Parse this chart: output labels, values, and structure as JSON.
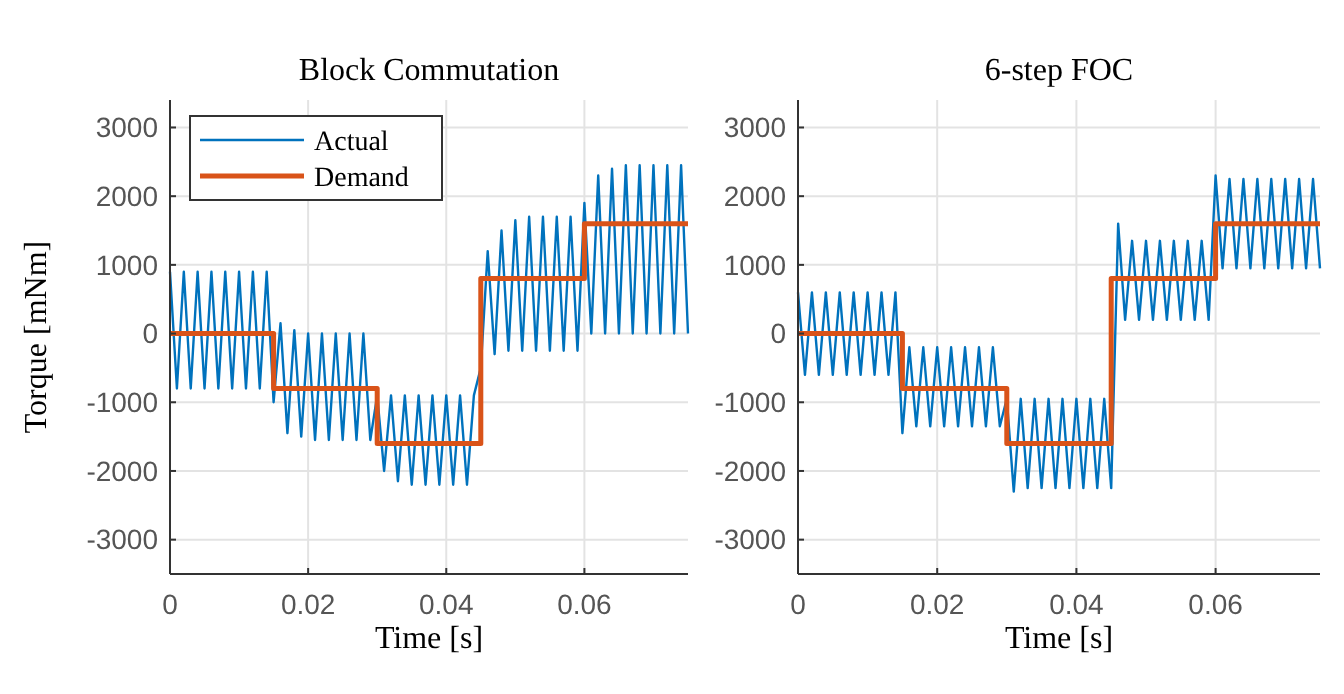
{
  "chart_data": [
    {
      "type": "line",
      "title": "Block Commutation",
      "xlabel": "Time [s]",
      "ylabel": "Torque [mNm]",
      "xlim": [
        0,
        0.075
      ],
      "ylim": [
        -3500,
        3400
      ],
      "xticks": [
        0,
        0.02,
        0.04,
        0.06
      ],
      "yticks": [
        -3000,
        -2000,
        -1000,
        0,
        1000,
        2000,
        3000
      ],
      "grid": true,
      "legend": "top left",
      "series": [
        {
          "name": "Actual",
          "color": "#0072bd",
          "x": [
            0,
            0.001,
            0.002,
            0.003,
            0.004,
            0.005,
            0.006,
            0.007,
            0.008,
            0.009,
            0.01,
            0.011,
            0.012,
            0.013,
            0.014,
            0.015,
            0.016,
            0.017,
            0.018,
            0.019,
            0.02,
            0.021,
            0.022,
            0.023,
            0.024,
            0.025,
            0.026,
            0.027,
            0.028,
            0.029,
            0.03,
            0.031,
            0.032,
            0.033,
            0.034,
            0.035,
            0.036,
            0.037,
            0.038,
            0.039,
            0.04,
            0.041,
            0.042,
            0.043,
            0.044,
            0.045,
            0.046,
            0.047,
            0.048,
            0.049,
            0.05,
            0.051,
            0.052,
            0.053,
            0.054,
            0.055,
            0.056,
            0.057,
            0.058,
            0.059,
            0.06,
            0.061,
            0.062,
            0.063,
            0.064,
            0.065,
            0.066,
            0.067,
            0.068,
            0.069,
            0.07,
            0.071,
            0.072,
            0.073,
            0.074,
            0.075
          ],
          "values": [
            900,
            -800,
            900,
            -800,
            900,
            -800,
            900,
            -800,
            900,
            -800,
            900,
            -800,
            900,
            -800,
            900,
            -1000,
            150,
            -1450,
            50,
            -1500,
            0,
            -1550,
            0,
            -1550,
            0,
            -1550,
            0,
            -1550,
            0,
            -1550,
            -900,
            -2000,
            -900,
            -2150,
            -900,
            -2200,
            -900,
            -2200,
            -900,
            -2200,
            -900,
            -2200,
            -900,
            -2200,
            -900,
            -500,
            1200,
            -300,
            1500,
            -250,
            1650,
            -250,
            1700,
            -250,
            1700,
            -250,
            1700,
            -250,
            1700,
            -250,
            1900,
            0,
            2300,
            0,
            2400,
            0,
            2450,
            0,
            2450,
            0,
            2450,
            0,
            2450,
            0,
            2450,
            0
          ]
        },
        {
          "name": "Demand",
          "type": "step",
          "color": "#d95319",
          "x": [
            0,
            0.015,
            0.03,
            0.045,
            0.06,
            0.075
          ],
          "values": [
            0,
            -800,
            -1600,
            800,
            1600,
            1600
          ]
        }
      ]
    },
    {
      "type": "line",
      "title": "6-step FOC",
      "xlabel": "Time [s]",
      "xlim": [
        0,
        0.075
      ],
      "ylim": [
        -3500,
        3400
      ],
      "xticks": [
        0,
        0.02,
        0.04,
        0.06
      ],
      "yticks": [
        -3000,
        -2000,
        -1000,
        0,
        1000,
        2000,
        3000
      ],
      "grid": true,
      "legend": false,
      "series": [
        {
          "color": "#0072bd",
          "x": [
            0,
            0.001,
            0.002,
            0.003,
            0.004,
            0.005,
            0.006,
            0.007,
            0.008,
            0.009,
            0.01,
            0.011,
            0.012,
            0.013,
            0.014,
            0.015,
            0.016,
            0.017,
            0.018,
            0.019,
            0.02,
            0.021,
            0.022,
            0.023,
            0.024,
            0.025,
            0.026,
            0.027,
            0.028,
            0.029,
            0.03,
            0.031,
            0.032,
            0.033,
            0.034,
            0.035,
            0.036,
            0.037,
            0.038,
            0.039,
            0.04,
            0.041,
            0.042,
            0.043,
            0.044,
            0.045,
            0.046,
            0.047,
            0.048,
            0.049,
            0.05,
            0.051,
            0.052,
            0.053,
            0.054,
            0.055,
            0.056,
            0.057,
            0.058,
            0.059,
            0.06,
            0.061,
            0.062,
            0.063,
            0.064,
            0.065,
            0.066,
            0.067,
            0.068,
            0.069,
            0.07,
            0.071,
            0.072,
            0.073,
            0.074,
            0.075
          ],
          "values": [
            600,
            -600,
            600,
            -600,
            600,
            -600,
            600,
            -600,
            600,
            -600,
            600,
            -600,
            600,
            -600,
            600,
            -1450,
            -200,
            -1350,
            -200,
            -1350,
            -200,
            -1350,
            -200,
            -1350,
            -200,
            -1350,
            -200,
            -1350,
            -200,
            -1350,
            -950,
            -2300,
            -950,
            -2250,
            -950,
            -2250,
            -950,
            -2250,
            -950,
            -2250,
            -950,
            -2250,
            -950,
            -2250,
            -950,
            -2250,
            1600,
            200,
            1350,
            200,
            1350,
            200,
            1350,
            200,
            1350,
            200,
            1350,
            200,
            1350,
            200,
            2300,
            950,
            2250,
            950,
            2250,
            950,
            2250,
            950,
            2250,
            950,
            2250,
            950,
            2250,
            950,
            2250,
            950
          ]
        },
        {
          "type": "step",
          "color": "#d95319",
          "x": [
            0,
            0.015,
            0.03,
            0.045,
            0.06,
            0.075
          ],
          "values": [
            0,
            -800,
            -1600,
            800,
            1600,
            1600
          ]
        }
      ]
    }
  ]
}
